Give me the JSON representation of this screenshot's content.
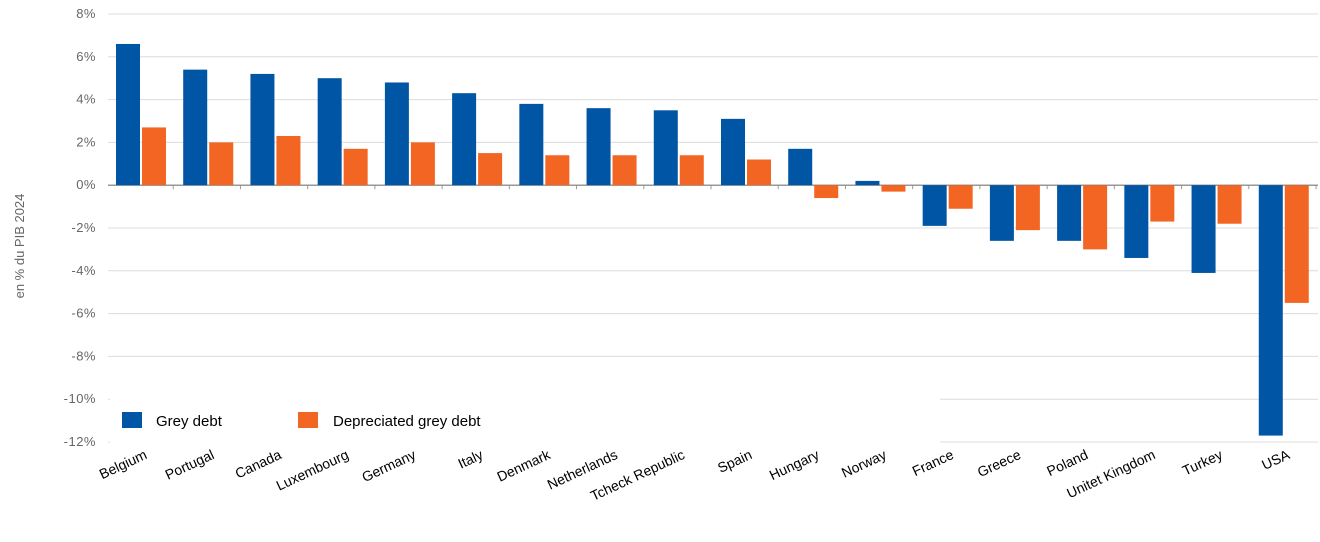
{
  "chart_data": {
    "type": "bar",
    "ylabel": "en % du PIB 2024",
    "ylim": [
      -12,
      8
    ],
    "yticks": [
      8,
      6,
      4,
      2,
      0,
      -2,
      -4,
      -6,
      -8,
      -10,
      -12
    ],
    "ytick_labels": [
      "8%",
      "6%",
      "4%",
      "2%",
      "0%",
      "-2%",
      "-4%",
      "-6%",
      "-8%",
      "-10%",
      "-12%"
    ],
    "grid": true,
    "legend_position": "bottom-left",
    "categories": [
      "Belgium",
      "Portugal",
      "Canada",
      "Luxembourg",
      "Germany",
      "Italy",
      "Denmark",
      "Netherlands",
      "Tcheck Republic",
      "Spain",
      "Hungary",
      "Norway",
      "France",
      "Greece",
      "Poland",
      "Unitet Kingdom",
      "Turkey",
      "USA"
    ],
    "series": [
      {
        "name": "Grey debt",
        "color": "#0055a5",
        "values": [
          6.6,
          5.4,
          5.2,
          5.0,
          4.8,
          4.3,
          3.8,
          3.6,
          3.5,
          3.1,
          1.7,
          0.2,
          -1.9,
          -2.6,
          -2.6,
          -3.4,
          -4.1,
          -11.7
        ]
      },
      {
        "name": "Depreciated grey debt",
        "color": "#f26522",
        "values": [
          2.7,
          2.0,
          2.3,
          1.7,
          2.0,
          1.5,
          1.4,
          1.4,
          1.4,
          1.2,
          -0.6,
          -0.3,
          -1.1,
          -2.1,
          -3.0,
          -1.7,
          -1.8,
          -5.5
        ]
      }
    ]
  }
}
